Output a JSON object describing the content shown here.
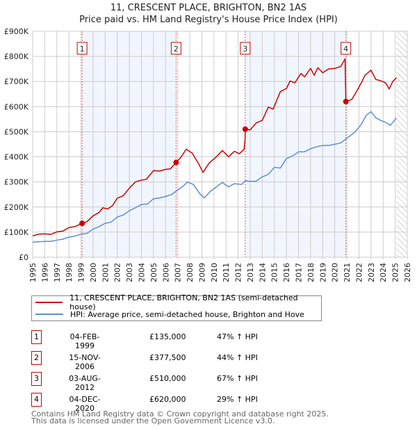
{
  "chart_data": {
    "type": "line",
    "title": "11, CRESCENT PLACE, BRIGHTON, BN2 1AS",
    "subtitle": "Price paid vs. HM Land Registry's House Price Index (HPI)",
    "xlim": [
      1995,
      2026
    ],
    "ylim": [
      0,
      900000
    ],
    "x_ticks": [
      "1995",
      "1996",
      "1997",
      "1998",
      "1999",
      "2000",
      "2001",
      "2002",
      "2003",
      "2004",
      "2005",
      "2006",
      "2007",
      "2008",
      "2009",
      "2010",
      "2011",
      "2012",
      "2013",
      "2014",
      "2015",
      "2016",
      "2017",
      "2018",
      "2019",
      "2020",
      "2021",
      "2022",
      "2023",
      "2024",
      "2025",
      "2026"
    ],
    "y_ticks": [
      {
        "v": 0,
        "label": "£0"
      },
      {
        "v": 100000,
        "label": "£100K"
      },
      {
        "v": 200000,
        "label": "£200K"
      },
      {
        "v": 300000,
        "label": "£300K"
      },
      {
        "v": 400000,
        "label": "£400K"
      },
      {
        "v": 500000,
        "label": "£500K"
      },
      {
        "v": 600000,
        "label": "£600K"
      },
      {
        "v": 700000,
        "label": "£700K"
      },
      {
        "v": 800000,
        "label": "£800K"
      },
      {
        "v": 900000,
        "label": "£900K"
      }
    ],
    "grid": true,
    "forecast_hatch_from": 2025.1,
    "shaded_periods": [
      [
        1999.09,
        2006.87
      ],
      [
        2012.59,
        2020.92
      ]
    ],
    "series": [
      {
        "name": "11, CRESCENT PLACE, BRIGHTON, BN2 1AS (semi-detached house)",
        "color": "#cc0000",
        "points": [
          [
            1995,
            85000
          ],
          [
            1995.5,
            92000
          ],
          [
            1996,
            93000
          ],
          [
            1996.5,
            91000
          ],
          [
            1997,
            101000
          ],
          [
            1997.5,
            104000
          ],
          [
            1998,
            118000
          ],
          [
            1998.5,
            122000
          ],
          [
            1999.09,
            135000
          ],
          [
            1999.5,
            142000
          ],
          [
            2000,
            165000
          ],
          [
            2000.5,
            178000
          ],
          [
            2000.8,
            197000
          ],
          [
            2001.2,
            192000
          ],
          [
            2001.6,
            205000
          ],
          [
            2002,
            235000
          ],
          [
            2002.5,
            245000
          ],
          [
            2003,
            275000
          ],
          [
            2003.5,
            300000
          ],
          [
            2004,
            307000
          ],
          [
            2004.4,
            310000
          ],
          [
            2005,
            345000
          ],
          [
            2005.5,
            343000
          ],
          [
            2006,
            350000
          ],
          [
            2006.4,
            352000
          ],
          [
            2006.87,
            377500
          ],
          [
            2007.3,
            400000
          ],
          [
            2007.7,
            430000
          ],
          [
            2008.2,
            415000
          ],
          [
            2008.7,
            375000
          ],
          [
            2009.1,
            338000
          ],
          [
            2009.6,
            375000
          ],
          [
            2010.2,
            400000
          ],
          [
            2010.7,
            425000
          ],
          [
            2011.2,
            400000
          ],
          [
            2011.7,
            422000
          ],
          [
            2012.1,
            412000
          ],
          [
            2012.5,
            430000
          ],
          [
            2012.58,
            470000
          ],
          [
            2012.59,
            510000
          ],
          [
            2013,
            507000
          ],
          [
            2013.5,
            535000
          ],
          [
            2014,
            545000
          ],
          [
            2014.5,
            598000
          ],
          [
            2014.9,
            590000
          ],
          [
            2015.5,
            660000
          ],
          [
            2016,
            672000
          ],
          [
            2016.3,
            702000
          ],
          [
            2016.7,
            695000
          ],
          [
            2017.2,
            732000
          ],
          [
            2017.5,
            718000
          ],
          [
            2018,
            752000
          ],
          [
            2018.3,
            725000
          ],
          [
            2018.6,
            755000
          ],
          [
            2019,
            735000
          ],
          [
            2019.5,
            750000
          ],
          [
            2020,
            752000
          ],
          [
            2020.5,
            760000
          ],
          [
            2020.85,
            790000
          ],
          [
            2020.92,
            620000
          ],
          [
            2021.4,
            628000
          ],
          [
            2021.8,
            660000
          ],
          [
            2022.2,
            695000
          ],
          [
            2022.5,
            725000
          ],
          [
            2023,
            745000
          ],
          [
            2023.4,
            708000
          ],
          [
            2023.8,
            703000
          ],
          [
            2024.2,
            695000
          ],
          [
            2024.5,
            670000
          ],
          [
            2024.8,
            700000
          ],
          [
            2025.1,
            715000
          ]
        ]
      },
      {
        "name": "HPI: Average price, semi-detached house, Brighton and Hove",
        "color": "#5b8ed6",
        "points": [
          [
            1995,
            60000
          ],
          [
            1996,
            63000
          ],
          [
            1996.5,
            63000
          ],
          [
            1997,
            68000
          ],
          [
            1997.5,
            72000
          ],
          [
            1998,
            80000
          ],
          [
            1998.5,
            84000
          ],
          [
            1999,
            92000
          ],
          [
            1999.5,
            95000
          ],
          [
            2000,
            112000
          ],
          [
            2000.5,
            122000
          ],
          [
            2001,
            135000
          ],
          [
            2001.5,
            140000
          ],
          [
            2002,
            160000
          ],
          [
            2002.5,
            168000
          ],
          [
            2003,
            185000
          ],
          [
            2003.5,
            197000
          ],
          [
            2004,
            210000
          ],
          [
            2004.5,
            212000
          ],
          [
            2005,
            233000
          ],
          [
            2005.5,
            236000
          ],
          [
            2006,
            242000
          ],
          [
            2006.5,
            250000
          ],
          [
            2006.9,
            264000
          ],
          [
            2007.5,
            285000
          ],
          [
            2007.8,
            300000
          ],
          [
            2008.3,
            290000
          ],
          [
            2008.8,
            255000
          ],
          [
            2009.2,
            236000
          ],
          [
            2009.7,
            262000
          ],
          [
            2010.2,
            280000
          ],
          [
            2010.7,
            298000
          ],
          [
            2011.2,
            280000
          ],
          [
            2011.7,
            293000
          ],
          [
            2012.3,
            290000
          ],
          [
            2012.6,
            305000
          ],
          [
            2013,
            302000
          ],
          [
            2013.5,
            303000
          ],
          [
            2014,
            320000
          ],
          [
            2014.5,
            330000
          ],
          [
            2015,
            358000
          ],
          [
            2015.5,
            355000
          ],
          [
            2016,
            393000
          ],
          [
            2016.5,
            403000
          ],
          [
            2017,
            420000
          ],
          [
            2017.5,
            420000
          ],
          [
            2018,
            432000
          ],
          [
            2018.5,
            440000
          ],
          [
            2019,
            445000
          ],
          [
            2019.5,
            445000
          ],
          [
            2020,
            450000
          ],
          [
            2020.5,
            455000
          ],
          [
            2020.9,
            470000
          ],
          [
            2021.3,
            485000
          ],
          [
            2021.7,
            500000
          ],
          [
            2022.2,
            530000
          ],
          [
            2022.6,
            565000
          ],
          [
            2023,
            580000
          ],
          [
            2023.4,
            555000
          ],
          [
            2023.8,
            545000
          ],
          [
            2024.3,
            535000
          ],
          [
            2024.6,
            525000
          ],
          [
            2025.1,
            555000
          ]
        ]
      }
    ],
    "sales": [
      {
        "n": "1",
        "x": 1999.09,
        "price": 135000,
        "date": "04-FEB-1999",
        "price_label": "£135,000",
        "hpi": "47% ↑ HPI"
      },
      {
        "n": "2",
        "x": 2006.87,
        "price": 377500,
        "date": "15-NOV-2006",
        "price_label": "£377,500",
        "hpi": "44% ↑ HPI"
      },
      {
        "n": "3",
        "x": 2012.59,
        "price": 510000,
        "date": "03-AUG-2012",
        "price_label": "£510,000",
        "hpi": "67% ↑ HPI"
      },
      {
        "n": "4",
        "x": 2020.92,
        "price": 620000,
        "date": "04-DEC-2020",
        "price_label": "£620,000",
        "hpi": "29% ↑ HPI"
      }
    ]
  },
  "footer": {
    "line1": "Contains HM Land Registry data © Crown copyright and database right 2025.",
    "line2": "This data is licensed under the Open Government Licence v3.0."
  }
}
